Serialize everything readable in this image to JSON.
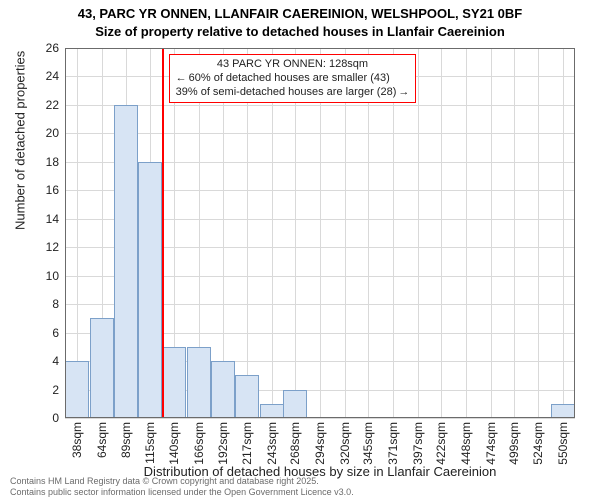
{
  "title_line1": "43, PARC YR ONNEN, LLANFAIR CAEREINION, WELSHPOOL, SY21 0BF",
  "title_line2": "Size of property relative to detached houses in Llanfair Caereinion",
  "y_axis_title": "Number of detached properties",
  "x_axis_title": "Distribution of detached houses by size in Llanfair Caereinion",
  "footer_line1": "Contains HM Land Registry data © Crown copyright and database right 2025.",
  "footer_line2": "Contains public sector information licensed under the Open Government Licence v3.0.",
  "annotation": {
    "heading": "43 PARC YR ONNEN: 128sqm",
    "line1_arrow": "←",
    "line1": "60% of detached houses are smaller (43)",
    "line2": "39% of semi-detached houses are larger (28)",
    "line2_arrow": "→",
    "border_color": "#ff0000",
    "text_color": "#222222"
  },
  "highlight": {
    "x_value": 128,
    "color": "#ff0000"
  },
  "chart": {
    "type": "histogram",
    "background_color": "#ffffff",
    "grid_color": "#d9d9d9",
    "axis_color": "#6b6b6b",
    "bar_fill": "#d7e4f4",
    "bar_border": "#7ca0c9",
    "bar_border_width": 1,
    "xlim": [
      25,
      563
    ],
    "ylim": [
      0,
      26
    ],
    "y_ticks": [
      0,
      2,
      4,
      6,
      8,
      10,
      12,
      14,
      16,
      18,
      20,
      22,
      24,
      26
    ],
    "x_ticks": [
      38,
      64,
      89,
      115,
      140,
      166,
      192,
      217,
      243,
      268,
      294,
      320,
      345,
      371,
      397,
      422,
      448,
      474,
      499,
      524,
      550
    ],
    "x_tick_suffix": "sqm",
    "bars": [
      {
        "x": 38,
        "y": 4
      },
      {
        "x": 64,
        "y": 7
      },
      {
        "x": 89,
        "y": 22
      },
      {
        "x": 115,
        "y": 18
      },
      {
        "x": 140,
        "y": 5
      },
      {
        "x": 166,
        "y": 5
      },
      {
        "x": 192,
        "y": 4
      },
      {
        "x": 217,
        "y": 3
      },
      {
        "x": 243,
        "y": 1
      },
      {
        "x": 268,
        "y": 2
      },
      {
        "x": 294,
        "y": 0
      },
      {
        "x": 320,
        "y": 0
      },
      {
        "x": 345,
        "y": 0
      },
      {
        "x": 371,
        "y": 0
      },
      {
        "x": 397,
        "y": 0
      },
      {
        "x": 422,
        "y": 0
      },
      {
        "x": 448,
        "y": 0
      },
      {
        "x": 474,
        "y": 0
      },
      {
        "x": 499,
        "y": 0
      },
      {
        "x": 524,
        "y": 0
      },
      {
        "x": 550,
        "y": 1
      }
    ],
    "bar_width_data": 25.6
  }
}
